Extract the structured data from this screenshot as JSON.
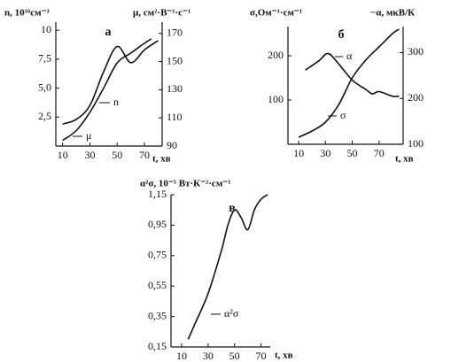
{
  "chart_data": [
    {
      "type": "line",
      "panel_label": "а",
      "ylabel": "n, 10¹⁶см⁻³",
      "y2label": "μ, см²·В⁻¹·с⁻¹",
      "xlabel": "t, хв",
      "xlim": [
        5,
        83
      ],
      "xticks": [
        10,
        30,
        50,
        70
      ],
      "ylim": [
        0,
        10.7
      ],
      "yticks": [
        {
          "value": 2.5,
          "label": "2,5"
        },
        {
          "value": 5,
          "label": "5,0"
        },
        {
          "value": 7.5,
          "label": "7,5"
        },
        10
      ],
      "y2lim": [
        90,
        178
      ],
      "y2ticks": [
        90,
        110,
        130,
        150,
        170
      ],
      "series": [
        {
          "name": "n",
          "color": "#111111",
          "x": [
            10,
            20,
            30,
            40,
            50,
            60,
            70,
            80
          ],
          "values": [
            1.9,
            2.3,
            3.5,
            6.4,
            8.6,
            7.2,
            8.3,
            9.1
          ]
        },
        {
          "name": "μ",
          "color": "#111111",
          "axis": "y2",
          "x": [
            10,
            20,
            30,
            40,
            50,
            60,
            70,
            75
          ],
          "values": [
            94,
            101,
            114,
            131,
            149,
            156,
            163,
            166
          ]
        }
      ]
    },
    {
      "type": "line",
      "panel_label": "б",
      "ylabel": "σ,Ом⁻¹·см⁻¹",
      "y2label": "−α, мкВ/К",
      "xlabel": "t, хв",
      "xlim": [
        2,
        88
      ],
      "xticks": [
        10,
        30,
        50,
        70
      ],
      "ylim": [
        0,
        266
      ],
      "yticks": [
        100,
        200
      ],
      "y2lim": [
        100,
        357
      ],
      "y2ticks": [
        100,
        200,
        300
      ],
      "series": [
        {
          "name": "α",
          "color": "#111111",
          "axis": "y2",
          "x": [
            15,
            25,
            32,
            40,
            50,
            60,
            65,
            70,
            80,
            85
          ],
          "values": [
            262,
            282,
            298,
            275,
            240,
            220,
            210,
            215,
            205,
            205
          ]
        },
        {
          "name": "σ",
          "color": "#111111",
          "x": [
            10,
            20,
            30,
            40,
            50,
            60,
            70,
            80,
            85
          ],
          "values": [
            16,
            30,
            50,
            90,
            150,
            190,
            220,
            250,
            260
          ]
        }
      ]
    },
    {
      "type": "line",
      "panel_label": "в",
      "ylabel": "α²σ, 10⁻⁵ Вт·К⁻²·см⁻¹",
      "xlabel": "t, хв",
      "xlim": [
        2,
        77
      ],
      "xticks": [
        10,
        30,
        50,
        70
      ],
      "ylim": [
        0.15,
        1.15
      ],
      "yticks": [
        {
          "value": 0.15,
          "label": "0,15"
        },
        {
          "value": 0.35,
          "label": "0,35"
        },
        {
          "value": 0.55,
          "label": "0,55"
        },
        {
          "value": 0.75,
          "label": "0,75"
        },
        {
          "value": 0.95,
          "label": "0,95"
        },
        {
          "value": 1.15,
          "label": "1,15"
        }
      ],
      "series": [
        {
          "name": "α²σ",
          "color": "#111111",
          "x": [
            15,
            20,
            30,
            40,
            45,
            50,
            55,
            60,
            65,
            70,
            75
          ],
          "values": [
            0.2,
            0.3,
            0.5,
            0.78,
            0.95,
            1.05,
            1.0,
            0.92,
            1.05,
            1.12,
            1.15
          ]
        }
      ]
    }
  ]
}
